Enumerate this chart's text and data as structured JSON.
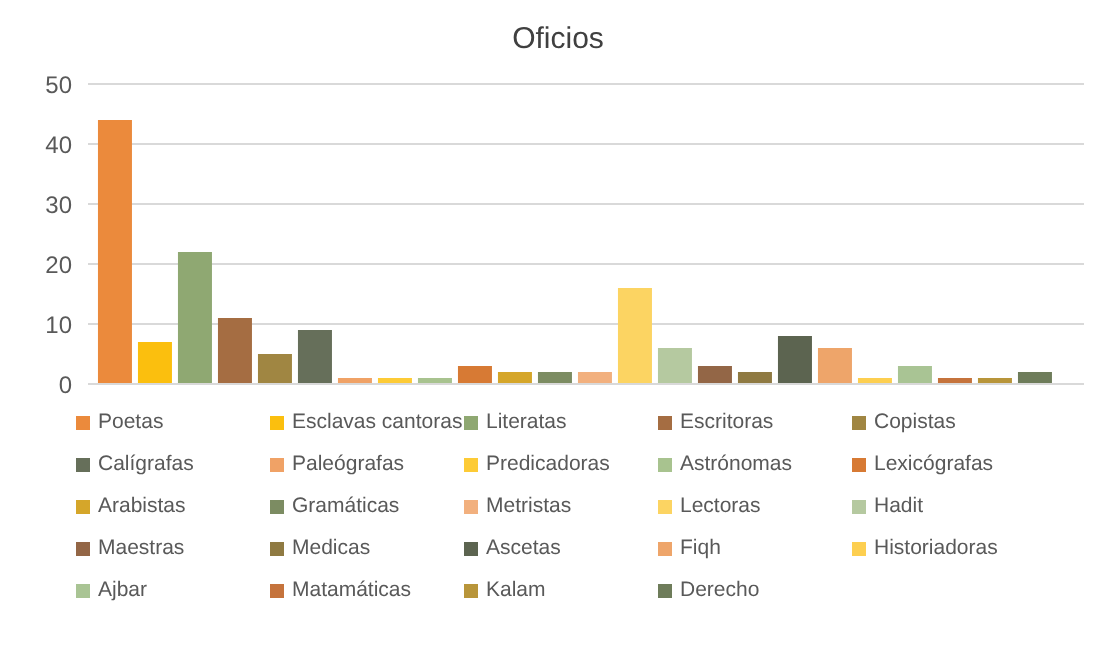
{
  "chart_data": {
    "type": "bar",
    "title": "Oficios",
    "categories": [
      null
    ],
    "series": [
      {
        "name": "Poetas",
        "color": "#eb8a3c",
        "values": [
          44
        ]
      },
      {
        "name": "Esclavas cantoras",
        "color": "#fbbf0e",
        "values": [
          7
        ]
      },
      {
        "name": "Literatas",
        "color": "#8fa872",
        "values": [
          22
        ]
      },
      {
        "name": "Escritoras",
        "color": "#a56d42",
        "values": [
          11
        ]
      },
      {
        "name": "Copistas",
        "color": "#a08642",
        "values": [
          5
        ]
      },
      {
        "name": "Calígrafas",
        "color": "#666f5a",
        "values": [
          9
        ]
      },
      {
        "name": "Paleógrafas",
        "color": "#f0a266",
        "values": [
          1
        ]
      },
      {
        "name": "Predicadoras",
        "color": "#fdcb36",
        "values": [
          1
        ]
      },
      {
        "name": "Astrónomas",
        "color": "#a8c38f",
        "values": [
          1
        ]
      },
      {
        "name": "Lexicógrafas",
        "color": "#d77a34",
        "values": [
          3
        ]
      },
      {
        "name": "Arabistas",
        "color": "#d5a62a",
        "values": [
          2
        ]
      },
      {
        "name": "Gramáticas",
        "color": "#7c8c62",
        "values": [
          2
        ]
      },
      {
        "name": "Metristas",
        "color": "#f2b07e",
        "values": [
          2
        ]
      },
      {
        "name": "Lectoras",
        "color": "#fcd462",
        "values": [
          16
        ]
      },
      {
        "name": "Hadit",
        "color": "#b5c9a0",
        "values": [
          6
        ]
      },
      {
        "name": "Maestras",
        "color": "#936646",
        "values": [
          3
        ]
      },
      {
        "name": "Medicas",
        "color": "#8f7a42",
        "values": [
          2
        ]
      },
      {
        "name": "Ascetas",
        "color": "#5c6450",
        "values": [
          8
        ]
      },
      {
        "name": "Fiqh",
        "color": "#eea56a",
        "values": [
          6
        ]
      },
      {
        "name": "Historiadoras",
        "color": "#fdcf50",
        "values": [
          1
        ]
      },
      {
        "name": "Ajbar",
        "color": "#a9c494",
        "values": [
          3
        ]
      },
      {
        "name": "Matamáticas",
        "color": "#c5733c",
        "values": [
          1
        ]
      },
      {
        "name": "Kalam",
        "color": "#b8953a",
        "values": [
          1
        ]
      },
      {
        "name": "Derecho",
        "color": "#6e7c5a",
        "values": [
          2
        ]
      }
    ],
    "ylim": [
      0,
      50
    ],
    "yticks": [
      0,
      10,
      20,
      30,
      40,
      50
    ],
    "grid": "y",
    "legend": "bottom",
    "tick_labels": "y"
  }
}
